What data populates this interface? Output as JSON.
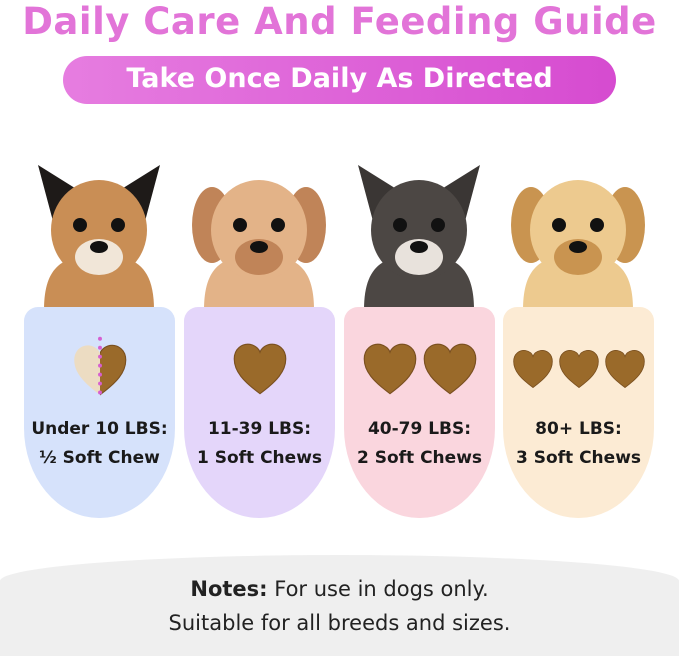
{
  "title": "Daily Care And Feeding Guide",
  "subtitle": "Take Once Daily As Directed",
  "cards": [
    {
      "weight": "Under 10 LBS:",
      "dose": "½ Soft Chew",
      "color": "#d6e2fb",
      "chews": 0.5,
      "dog": "chihuahua"
    },
    {
      "weight": "11-39 LBS:",
      "dose": "1 Soft Chews",
      "color": "#e4d6fa",
      "chews": 1,
      "dog": "poodle"
    },
    {
      "weight": "40-79 LBS:",
      "dose": "2 Soft Chews",
      "color": "#fad6de",
      "chews": 2,
      "dog": "french-bulldog"
    },
    {
      "weight": "80+ LBS:",
      "dose": "3 Soft Chews",
      "color": "#fcebd4",
      "chews": 3,
      "dog": "golden-retriever"
    }
  ],
  "notes": {
    "label": "Notes:",
    "line1": " For use in dogs only.",
    "line2": "Suitable for all breeds and sizes."
  },
  "colors": {
    "title": "#e274d8",
    "chew": "#9a6a2a",
    "divider": "#d65fd0"
  }
}
